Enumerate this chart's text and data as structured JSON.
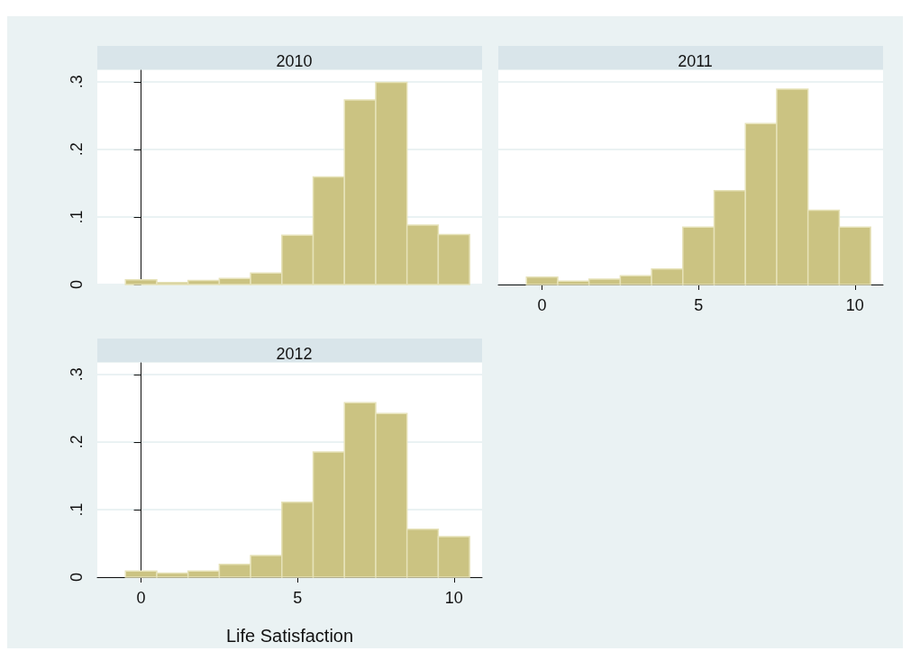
{
  "chart_data": [
    {
      "type": "histogram",
      "title": "2010",
      "bins": [
        -0.5,
        0.5,
        1.5,
        2.5,
        3.5,
        4.5,
        5.5,
        6.5,
        7.5,
        8.5,
        9.5,
        10.5
      ],
      "values": [
        0.007,
        0.003,
        0.006,
        0.009,
        0.017,
        0.073,
        0.159,
        0.273,
        0.299,
        0.088,
        0.074
      ],
      "color": "#cbc382",
      "xlim": [
        -1.4,
        10.9
      ],
      "ylim": [
        0,
        0.317
      ],
      "xticks": [
        0,
        5,
        10
      ],
      "yticks": [
        0,
        {
          "value": 0.1,
          "label": ".1"
        },
        {
          "value": 0.2,
          "label": ".2"
        },
        {
          "value": 0.3,
          "label": ".3"
        }
      ],
      "grid": "y",
      "tick_labels": "y"
    },
    {
      "type": "histogram",
      "title": "2011",
      "bins": [
        -0.5,
        0.5,
        1.5,
        2.5,
        3.5,
        4.5,
        5.5,
        6.5,
        7.5,
        8.5,
        9.5,
        10.5
      ],
      "values": [
        0.011,
        0.005,
        0.008,
        0.013,
        0.023,
        0.085,
        0.139,
        0.238,
        0.289,
        0.11,
        0.085
      ],
      "color": "#cbc382",
      "xlim": [
        -1.4,
        10.9
      ],
      "ylim": [
        0,
        0.317
      ],
      "xticks": [
        0,
        5,
        10
      ],
      "yticks": [
        0,
        0.1,
        0.2,
        0.3
      ],
      "grid": "y",
      "tick_labels": "x"
    },
    {
      "type": "histogram",
      "title": "2012",
      "xlabel": "Life Satisfaction",
      "bins": [
        -0.5,
        0.5,
        1.5,
        2.5,
        3.5,
        4.5,
        5.5,
        6.5,
        7.5,
        8.5,
        9.5,
        10.5
      ],
      "values": [
        0.009,
        0.006,
        0.009,
        0.019,
        0.032,
        0.111,
        0.185,
        0.258,
        0.242,
        0.071,
        0.06
      ],
      "color": "#cbc382",
      "xlim": [
        -1.4,
        10.9
      ],
      "ylim": [
        0,
        0.317
      ],
      "xticks": [
        0,
        5,
        10
      ],
      "yticks": [
        0,
        {
          "value": 0.1,
          "label": ".1"
        },
        {
          "value": 0.2,
          "label": ".2"
        },
        {
          "value": 0.3,
          "label": ".3"
        }
      ],
      "grid": "y"
    }
  ]
}
